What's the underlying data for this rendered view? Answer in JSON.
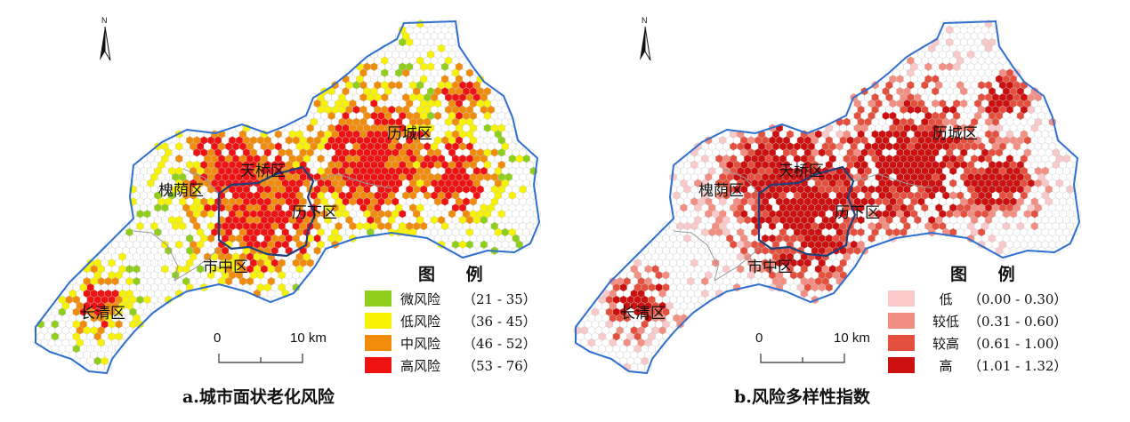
{
  "panel_a": {
    "caption": "a.城市面状老化风险",
    "north": "N",
    "districts": [
      "历城区",
      "天桥区",
      "槐荫区",
      "历下区",
      "市中区",
      "长清区"
    ],
    "legend": {
      "title": "图 例",
      "items": [
        {
          "name": "微风险",
          "range": "（21 - 35）",
          "color": "#8fce1a"
        },
        {
          "name": "低风险",
          "range": "（36 - 45）",
          "color": "#f6f200"
        },
        {
          "name": "中风险",
          "range": "（46 - 52）",
          "color": "#f08c0a"
        },
        {
          "name": "高风险",
          "range": "（53 - 76）",
          "color": "#ee1212"
        }
      ]
    },
    "scale": {
      "start": "0",
      "end": "10 km"
    }
  },
  "panel_b": {
    "caption": "b.风险多样性指数",
    "north": "N",
    "districts": [
      "历城区",
      "天桥区",
      "槐荫区",
      "历下区",
      "市中区",
      "长清区"
    ],
    "legend": {
      "title": "图 例",
      "items": [
        {
          "name": "低",
          "range": "（0.00 - 0.30）",
          "color": "#f9c8c8"
        },
        {
          "name": "较低",
          "range": "（0.31 - 0.60）",
          "color": "#f28e82"
        },
        {
          "name": "较高",
          "range": "（0.61 - 1.00）",
          "color": "#e5503e"
        },
        {
          "name": "高",
          "range": "（1.01 - 1.32）",
          "color": "#cc0f0f"
        }
      ]
    },
    "scale": {
      "start": "0",
      "end": "10 km"
    }
  },
  "colors": {
    "boundary": "#2f6fce",
    "core": "#1f3f7a",
    "grid": "#c8c8c8"
  }
}
